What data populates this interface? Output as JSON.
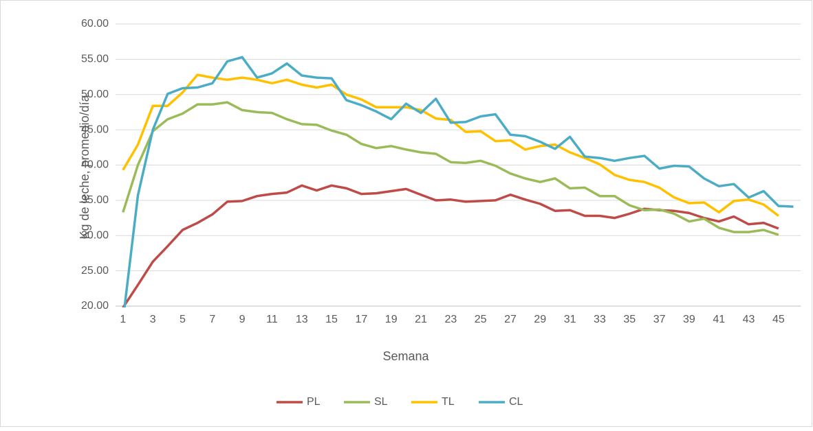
{
  "chart_data": {
    "type": "line",
    "x_label": "Semana",
    "y_label": "Kg de leche, promedio/día.",
    "categories": [
      1,
      null,
      3,
      null,
      5,
      null,
      7,
      null,
      9,
      null,
      11,
      null,
      13,
      null,
      15,
      null,
      17,
      null,
      19,
      null,
      21,
      null,
      23,
      null,
      25,
      null,
      27,
      null,
      29,
      null,
      31,
      null,
      33,
      null,
      35,
      null,
      37,
      null,
      39,
      null,
      41,
      null,
      43,
      null,
      45,
      null
    ],
    "ylim": [
      20,
      60
    ],
    "yticks": [
      {
        "value": 20,
        "label": "20.00"
      },
      {
        "value": 25,
        "label": "25.00"
      },
      {
        "value": 30,
        "label": "30.00"
      },
      {
        "value": 35,
        "label": "35.00"
      },
      {
        "value": 40,
        "label": "40.00"
      },
      {
        "value": 45,
        "label": "45.00"
      },
      {
        "value": 50,
        "label": "50.00"
      },
      {
        "value": 55,
        "label": "55.00"
      },
      {
        "value": 60,
        "label": "60.00"
      }
    ],
    "grid": true,
    "legend": "bottom",
    "series": [
      {
        "name": "PL",
        "color": "#be4b48",
        "values": [
          19.8,
          23.0,
          26.3,
          28.5,
          30.8,
          31.8,
          33.0,
          34.8,
          34.9,
          35.6,
          35.9,
          36.1,
          37.1,
          36.4,
          37.1,
          36.7,
          35.9,
          36.0,
          36.3,
          36.6,
          35.8,
          35.0,
          35.1,
          34.8,
          34.9,
          35.0,
          35.8,
          35.1,
          34.5,
          33.5,
          33.6,
          32.8,
          32.8,
          32.5,
          33.1,
          33.8,
          33.6,
          33.5,
          33.2,
          32.5,
          32.0,
          32.7,
          31.6,
          31.8,
          31.0,
          null
        ]
      },
      {
        "name": "SL",
        "color": "#9bbb59",
        "values": [
          33.3,
          40.0,
          44.8,
          46.5,
          47.3,
          48.6,
          48.6,
          48.9,
          47.8,
          47.5,
          47.4,
          46.5,
          45.8,
          45.7,
          44.9,
          44.3,
          43.0,
          42.4,
          42.7,
          42.2,
          41.8,
          41.6,
          40.4,
          40.3,
          40.6,
          39.9,
          38.8,
          38.1,
          37.6,
          38.1,
          36.7,
          36.8,
          35.6,
          35.6,
          34.3,
          33.6,
          33.7,
          33.1,
          32.0,
          32.4,
          31.1,
          30.5,
          30.5,
          30.8,
          30.1,
          null
        ]
      },
      {
        "name": "TL",
        "color": "#ffc000",
        "values": [
          39.3,
          42.9,
          48.4,
          48.4,
          50.3,
          52.8,
          52.4,
          52.1,
          52.4,
          52.1,
          51.6,
          52.1,
          51.4,
          51.0,
          51.4,
          50.0,
          49.3,
          48.2,
          48.2,
          48.2,
          47.8,
          46.6,
          46.4,
          44.7,
          44.8,
          43.4,
          43.5,
          42.2,
          42.7,
          42.9,
          41.8,
          41.0,
          40.1,
          38.6,
          37.9,
          37.6,
          36.8,
          35.4,
          34.6,
          34.7,
          33.3,
          34.9,
          35.1,
          34.4,
          32.8,
          null
        ]
      },
      {
        "name": "CL",
        "color": "#4bacc6",
        "values": [
          18.0,
          35.7,
          45.0,
          50.1,
          50.9,
          51.0,
          51.6,
          54.7,
          55.3,
          52.4,
          53.0,
          54.4,
          52.7,
          52.4,
          52.3,
          49.2,
          48.5,
          47.6,
          46.5,
          48.7,
          47.4,
          49.4,
          46.0,
          46.1,
          46.9,
          47.2,
          44.3,
          44.1,
          43.3,
          42.3,
          44.0,
          41.2,
          41.0,
          40.6,
          41.0,
          41.3,
          39.5,
          39.9,
          39.8,
          38.1,
          37.0,
          37.3,
          35.4,
          36.3,
          34.2,
          34.1
        ]
      }
    ]
  }
}
